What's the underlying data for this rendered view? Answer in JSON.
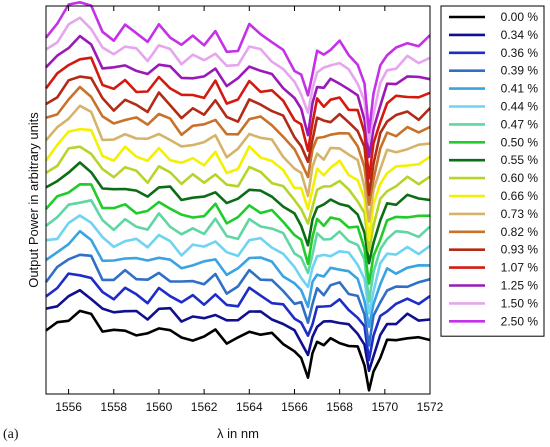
{
  "panel_label": "(a)",
  "chart_data": {
    "type": "line",
    "title": "",
    "xlabel": "λ in nm",
    "ylabel": "Output Power in arbitrary units",
    "xlim": [
      1555,
      1572
    ],
    "ylim": [
      0,
      22
    ],
    "x_ticks": [
      "1556",
      "1558",
      "1560",
      "1562",
      "1564",
      "1566",
      "1568",
      "1570",
      "1572"
    ],
    "y_ticks": [],
    "grid": false,
    "legend_position": "right",
    "x": [
      1555.0,
      1555.5,
      1556.0,
      1556.5,
      1557.0,
      1557.5,
      1558.0,
      1558.5,
      1559.0,
      1559.5,
      1560.0,
      1560.5,
      1561.0,
      1561.5,
      1562.0,
      1562.5,
      1563.0,
      1563.5,
      1564.0,
      1564.5,
      1565.0,
      1565.5,
      1566.0,
      1566.3,
      1566.6,
      1566.8,
      1567.0,
      1567.3,
      1567.6,
      1568.0,
      1568.4,
      1568.8,
      1569.1,
      1569.3,
      1569.5,
      1569.8,
      1570.1,
      1570.5,
      1571.0,
      1571.5,
      1572.0
    ],
    "base_profile": [
      0.0,
      0.4,
      0.9,
      1.2,
      1.0,
      0.1,
      -0.1,
      0.2,
      0.0,
      -0.2,
      0.3,
      0.0,
      -0.4,
      -0.2,
      -0.3,
      0.1,
      -0.6,
      -0.5,
      0.2,
      0.0,
      -0.2,
      -0.6,
      -1.2,
      -1.5,
      -2.3,
      -1.3,
      -0.6,
      -0.7,
      -0.5,
      -0.4,
      -0.7,
      -1.0,
      -1.8,
      -3.4,
      -2.2,
      -1.2,
      -0.6,
      -0.5,
      -0.3,
      -0.4,
      -0.2
    ],
    "series": [
      {
        "name": "0.00 %",
        "offset": 3.5,
        "color": "#000000"
      },
      {
        "name": "0.34 %",
        "offset": 4.6,
        "color": "#10108e"
      },
      {
        "name": "0.36 %",
        "offset": 5.6,
        "color": "#1e2cc8"
      },
      {
        "name": "0.39 %",
        "offset": 6.6,
        "color": "#2f6fc6"
      },
      {
        "name": "0.41 %",
        "offset": 7.6,
        "color": "#3aa3e2"
      },
      {
        "name": "0.44 %",
        "offset": 8.6,
        "color": "#6fd3f2"
      },
      {
        "name": "0.47 %",
        "offset": 9.6,
        "color": "#5fd6a4"
      },
      {
        "name": "0.50 %",
        "offset": 10.5,
        "color": "#1fcc2a"
      },
      {
        "name": "0.55 %",
        "offset": 11.5,
        "color": "#0c6e14"
      },
      {
        "name": "0.60 %",
        "offset": 12.5,
        "color": "#b6d42a"
      },
      {
        "name": "0.66 %",
        "offset": 13.5,
        "color": "#f5f000"
      },
      {
        "name": "0.73 %",
        "offset": 14.5,
        "color": "#d6b36a"
      },
      {
        "name": "0.82 %",
        "offset": 15.5,
        "color": "#c9722a"
      },
      {
        "name": "0.93 %",
        "offset": 16.4,
        "color": "#b32a16"
      },
      {
        "name": "1.07 %",
        "offset": 17.4,
        "color": "#d41a10"
      },
      {
        "name": "1.25 %",
        "offset": 18.4,
        "color": "#9a1ab8"
      },
      {
        "name": "1.50 %",
        "offset": 19.4,
        "color": "#e6a6ee"
      },
      {
        "name": "2.50 %",
        "offset": 20.4,
        "color": "#c431e6"
      }
    ]
  }
}
